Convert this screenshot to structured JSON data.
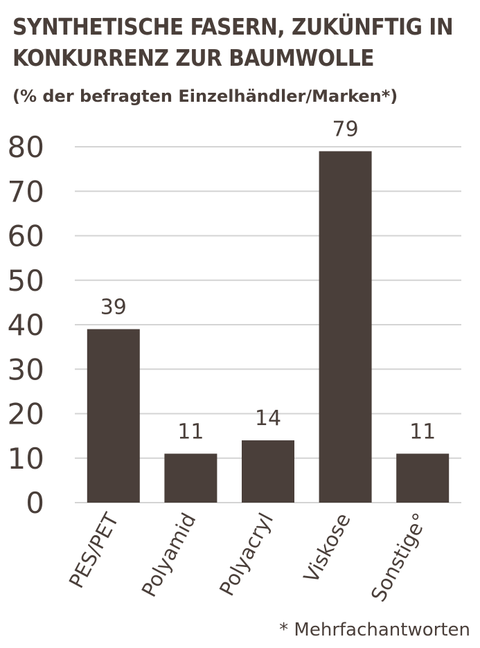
{
  "title_lines": [
    "SYNTHETISCHE FASERN, ZUKÜNFTIG IN",
    "KONKURRENZ ZUR BAUMWOLLE"
  ],
  "subtitle": "(% der befragten Einzelhändler/Marken*)",
  "footnote": "* Mehrfachantworten",
  "colors": {
    "bar": "#4a3f3a",
    "grid": "#d4d4d4",
    "text": "#4a3f3a"
  },
  "chart_data": {
    "type": "bar",
    "title": "SYNTHETISCHE FASERN, ZUKÜNFTIG IN KONKURRENZ ZUR BAUMWOLLE",
    "subtitle": "(% der befragten Einzelhändler/Marken*)",
    "categories": [
      "PES/PET",
      "Polyamid",
      "Polyacryl",
      "Viskose",
      "Sonstige°"
    ],
    "values": [
      39,
      11,
      14,
      79,
      11
    ],
    "ylim": [
      0,
      80
    ],
    "yticks": [
      0,
      10,
      20,
      30,
      40,
      50,
      60,
      70,
      80
    ],
    "grid": true,
    "data_labels": true
  }
}
